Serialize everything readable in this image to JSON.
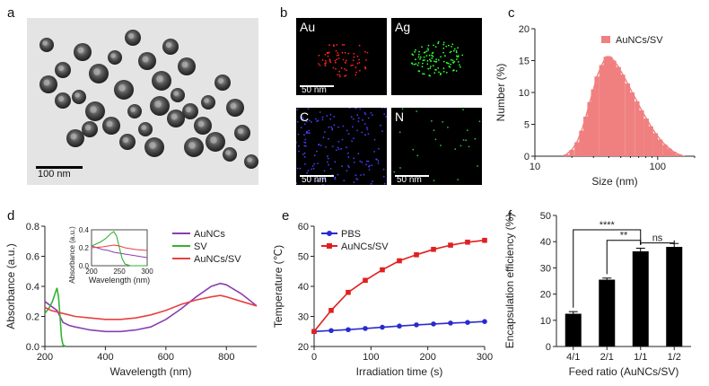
{
  "panels": {
    "a": {
      "letter": "a",
      "scale_label": "100  nm"
    },
    "b": {
      "letter": "b",
      "maps": [
        {
          "element": "Au",
          "scale": "50  nm",
          "color": "#ff2020",
          "count": 70
        },
        {
          "element": "Ag",
          "scale": "",
          "color": "#30ff30",
          "count": 110
        },
        {
          "element": "C",
          "scale": "50  nm",
          "color": "#4040ff",
          "count": 160
        },
        {
          "element": "N",
          "scale": "50  nm",
          "color": "#30c030",
          "count": 25
        }
      ]
    },
    "c": {
      "letter": "c"
    },
    "d": {
      "letter": "d"
    },
    "e": {
      "letter": "e"
    },
    "f": {
      "letter": "f"
    }
  },
  "chart_data": [
    {
      "panel": "c",
      "type": "bar",
      "xscale": "log",
      "xlabel": "Size (nm)",
      "ylabel": "Number (%)",
      "xlim": [
        10,
        200
      ],
      "ylim": [
        0,
        20
      ],
      "xticks": [
        10,
        100
      ],
      "yticks": [
        0,
        5,
        10,
        15,
        20
      ],
      "legend": {
        "label": "AuNCs/SV",
        "position": "top-right"
      },
      "color": "#f08080",
      "x": [
        18,
        20,
        22,
        24,
        26,
        28,
        30,
        32,
        35,
        38,
        41,
        44,
        48,
        52,
        57,
        62,
        68,
        74,
        81,
        88,
        96,
        105,
        115,
        125,
        135,
        148,
        160
      ],
      "values": [
        0.3,
        1.0,
        2.2,
        4.0,
        6.2,
        8.5,
        10.5,
        12.5,
        14.3,
        15.6,
        15.6,
        15.0,
        14.0,
        12.8,
        11.4,
        10.0,
        8.6,
        7.2,
        5.9,
        4.7,
        3.6,
        2.6,
        1.8,
        1.2,
        0.7,
        0.3,
        0.1
      ]
    },
    {
      "panel": "d",
      "type": "line",
      "xlabel": "Wavelength (nm)",
      "ylabel": "Absorbance (a.u.)",
      "xlim": [
        200,
        900
      ],
      "ylim": [
        0,
        0.8
      ],
      "xticks": [
        200,
        400,
        600,
        800
      ],
      "yticks": [
        0.0,
        0.2,
        0.4,
        0.6,
        0.8
      ],
      "legend_position": "top-right",
      "series": [
        {
          "name": "AuNCs",
          "color": "#8a3fb0",
          "x": [
            200,
            220,
            240,
            260,
            280,
            300,
            350,
            400,
            450,
            500,
            550,
            600,
            650,
            700,
            750,
            780,
            800,
            850,
            900
          ],
          "y": [
            0.3,
            0.27,
            0.24,
            0.16,
            0.14,
            0.13,
            0.11,
            0.1,
            0.1,
            0.11,
            0.13,
            0.18,
            0.25,
            0.33,
            0.4,
            0.42,
            0.41,
            0.35,
            0.27
          ]
        },
        {
          "name": "SV",
          "color": "#33b333",
          "x": [
            200,
            215,
            225,
            235,
            240,
            245,
            250,
            255,
            260,
            270
          ],
          "y": [
            0.22,
            0.26,
            0.3,
            0.36,
            0.39,
            0.33,
            0.2,
            0.06,
            0.01,
            0.0
          ]
        },
        {
          "name": "AuNCs/SV",
          "color": "#e84040",
          "x": [
            200,
            220,
            240,
            260,
            280,
            300,
            350,
            400,
            450,
            500,
            550,
            600,
            650,
            700,
            750,
            780,
            800,
            850,
            900
          ],
          "y": [
            0.26,
            0.24,
            0.23,
            0.22,
            0.21,
            0.2,
            0.19,
            0.18,
            0.18,
            0.19,
            0.21,
            0.24,
            0.28,
            0.31,
            0.33,
            0.34,
            0.33,
            0.3,
            0.27
          ]
        }
      ],
      "inset": {
        "xlabel": "Wavelength (nm)",
        "ylabel": "Absorbance (a.u.)",
        "xlim": [
          200,
          300
        ],
        "ylim": [
          0,
          0.4
        ],
        "xticks": [
          200,
          250,
          300
        ],
        "yticks": [
          0.0,
          0.2,
          0.4
        ],
        "series": [
          {
            "name": "AuNCs",
            "color": "#8a3fb0",
            "x": [
              200,
              210,
              220,
              230,
              240,
              250,
              260,
              270,
              280,
              290,
              300
            ],
            "y": [
              0.22,
              0.2,
              0.18,
              0.17,
              0.15,
              0.14,
              0.13,
              0.12,
              0.11,
              0.1,
              0.09
            ]
          },
          {
            "name": "SV",
            "color": "#33b333",
            "x": [
              200,
              215,
              225,
              235,
              240,
              245,
              250,
              255,
              260,
              270,
              300
            ],
            "y": [
              0.22,
              0.26,
              0.3,
              0.36,
              0.38,
              0.33,
              0.2,
              0.08,
              0.02,
              0.0,
              0.0
            ]
          },
          {
            "name": "AuNCs/SV",
            "color": "#e84040",
            "x": [
              200,
              220,
              240,
              250,
              260,
              270,
              280,
              300
            ],
            "y": [
              0.2,
              0.21,
              0.23,
              0.22,
              0.2,
              0.19,
              0.18,
              0.17
            ]
          }
        ]
      }
    },
    {
      "panel": "e",
      "type": "line",
      "xlabel": "Irradiation time (s)",
      "ylabel": "Temperature  (℃)",
      "xlim": [
        0,
        300
      ],
      "ylim": [
        20,
        60
      ],
      "xticks": [
        0,
        100,
        200,
        300
      ],
      "yticks": [
        20,
        30,
        40,
        50,
        60
      ],
      "legend_position": "top-left",
      "series": [
        {
          "name": "PBS",
          "color": "#2a2ad0",
          "marker": "circle",
          "x": [
            0,
            30,
            60,
            90,
            120,
            150,
            180,
            210,
            240,
            270,
            300
          ],
          "y": [
            25.0,
            25.3,
            25.6,
            26.0,
            26.4,
            26.8,
            27.2,
            27.5,
            27.8,
            28.0,
            28.3
          ]
        },
        {
          "name": "AuNCs/SV",
          "color": "#e02020",
          "marker": "square",
          "x": [
            0,
            30,
            60,
            90,
            120,
            150,
            180,
            210,
            240,
            270,
            300
          ],
          "y": [
            25.0,
            32.0,
            38.0,
            42.0,
            45.5,
            48.5,
            50.5,
            52.3,
            53.7,
            54.7,
            55.3
          ]
        }
      ]
    },
    {
      "panel": "f",
      "type": "bar",
      "xlabel": "Feed ratio (AuNCs/SV)",
      "ylabel": "Encapsulation efficiency (%)",
      "ylim": [
        0,
        50
      ],
      "yticks": [
        0,
        10,
        20,
        30,
        40,
        50
      ],
      "categories": [
        "4/1",
        "2/1",
        "1/1",
        "1/2"
      ],
      "values": [
        12.5,
        25.5,
        36.3,
        38.0
      ],
      "errors": [
        0.8,
        0.6,
        1.2,
        1.3
      ],
      "color": "#000000",
      "significance": [
        {
          "from": 0,
          "to": 2,
          "label": "****"
        },
        {
          "from": 1,
          "to": 2,
          "label": "**"
        },
        {
          "from": 2,
          "to": 3,
          "label": "ns"
        }
      ]
    }
  ]
}
